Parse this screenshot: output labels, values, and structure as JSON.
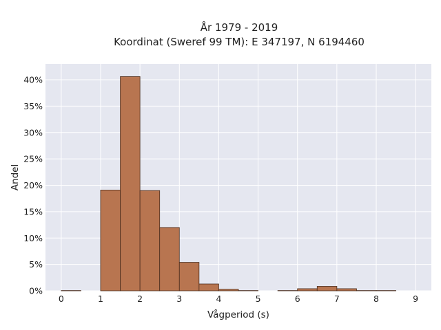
{
  "chart_data": {
    "type": "bar",
    "title": "År 1979 - 2019",
    "subtitle": "Koordinat (Sweref 99 TM): E 347197, N 6194460",
    "xlabel": "Vågperiod (s)",
    "ylabel": "Andel",
    "xlim": [
      -0.4,
      9.4
    ],
    "ylim": [
      0,
      43
    ],
    "bin_width": 0.5,
    "xticks": [
      0,
      1,
      2,
      3,
      4,
      5,
      6,
      7,
      8,
      9
    ],
    "yticks": [
      0,
      5,
      10,
      15,
      20,
      25,
      30,
      35,
      40
    ],
    "ytick_labels": [
      "0%",
      "5%",
      "10%",
      "15%",
      "20%",
      "25%",
      "30%",
      "35%",
      "40%"
    ],
    "grid": true,
    "bins": [
      {
        "x0": 0.0,
        "x1": 0.5,
        "value": 0.05
      },
      {
        "x0": 1.0,
        "x1": 1.5,
        "value": 19.1
      },
      {
        "x0": 1.5,
        "x1": 2.0,
        "value": 40.6
      },
      {
        "x0": 2.0,
        "x1": 2.5,
        "value": 19.0
      },
      {
        "x0": 2.5,
        "x1": 3.0,
        "value": 12.0
      },
      {
        "x0": 3.0,
        "x1": 3.5,
        "value": 5.4
      },
      {
        "x0": 3.5,
        "x1": 4.0,
        "value": 1.3
      },
      {
        "x0": 4.0,
        "x1": 4.5,
        "value": 0.3
      },
      {
        "x0": 4.5,
        "x1": 5.0,
        "value": 0.05
      },
      {
        "x0": 5.5,
        "x1": 6.0,
        "value": 0.05
      },
      {
        "x0": 6.0,
        "x1": 6.5,
        "value": 0.4
      },
      {
        "x0": 6.5,
        "x1": 7.0,
        "value": 0.85
      },
      {
        "x0": 7.0,
        "x1": 7.5,
        "value": 0.4
      },
      {
        "x0": 7.5,
        "x1": 8.0,
        "value": 0.05
      },
      {
        "x0": 8.0,
        "x1": 8.5,
        "value": 0.05
      }
    ],
    "colors": {
      "bar_fill": "#b87550",
      "bar_stroke": "#4a2c1c",
      "plot_background": "#e5e7f0",
      "grid": "#ffffff"
    }
  }
}
